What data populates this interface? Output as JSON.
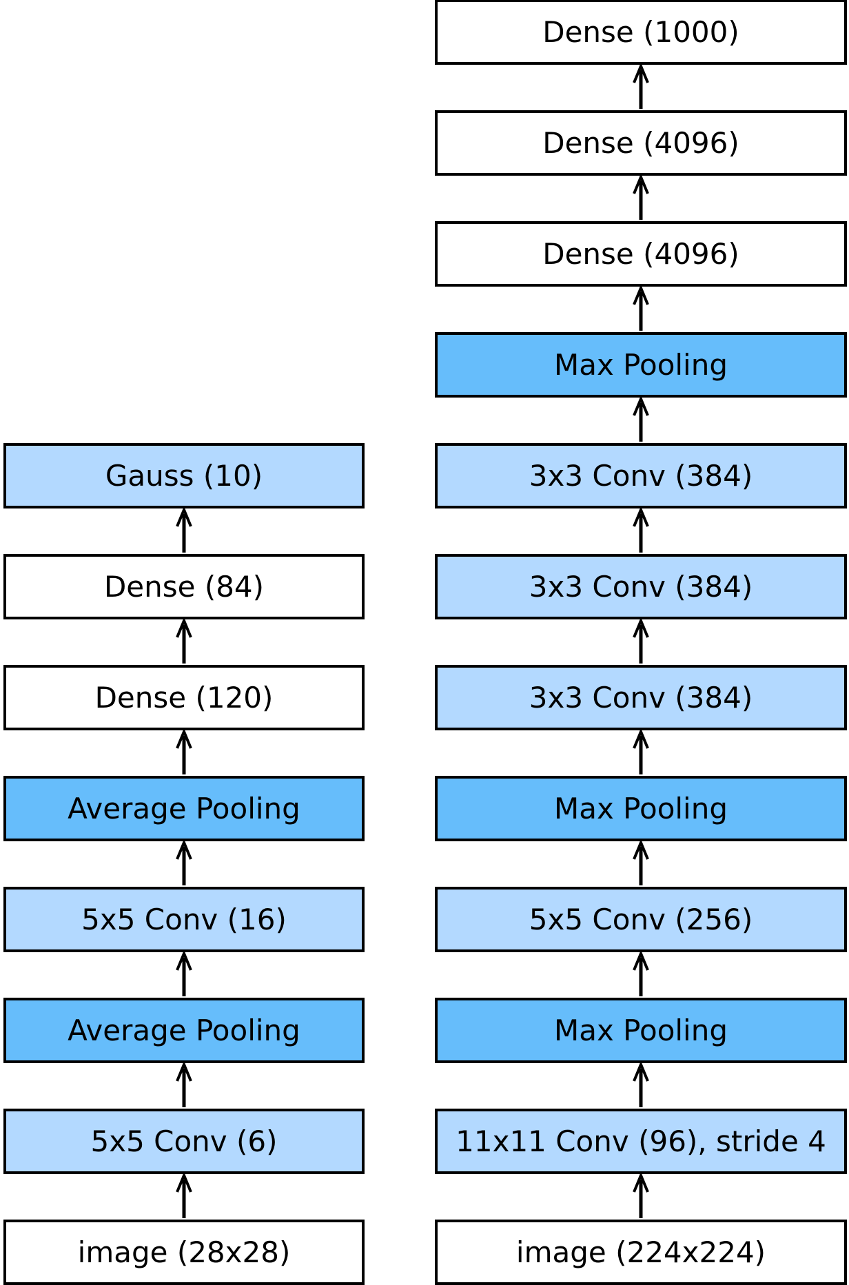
{
  "colors": {
    "plain": "#ffffff",
    "conv": "#b3d9ff",
    "pool": "#66bdfb",
    "stroke": "#000000"
  },
  "lenet": {
    "layers": [
      {
        "label": "image (28x28)",
        "kind": "plain"
      },
      {
        "label": "5x5 Conv (6)",
        "kind": "conv"
      },
      {
        "label": "Average Pooling",
        "kind": "pool"
      },
      {
        "label": "5x5 Conv (16)",
        "kind": "conv"
      },
      {
        "label": "Average Pooling",
        "kind": "pool"
      },
      {
        "label": "Dense (120)",
        "kind": "plain"
      },
      {
        "label": "Dense (84)",
        "kind": "plain"
      },
      {
        "label": "Gauss (10)",
        "kind": "conv"
      }
    ]
  },
  "alexnet": {
    "layers": [
      {
        "label": "image (224x224)",
        "kind": "plain"
      },
      {
        "label": "11x11 Conv (96), stride 4",
        "kind": "conv"
      },
      {
        "label": "Max Pooling",
        "kind": "pool"
      },
      {
        "label": "5x5 Conv (256)",
        "kind": "conv"
      },
      {
        "label": "Max Pooling",
        "kind": "pool"
      },
      {
        "label": "3x3 Conv (384)",
        "kind": "conv"
      },
      {
        "label": "3x3 Conv (384)",
        "kind": "conv"
      },
      {
        "label": "3x3 Conv (384)",
        "kind": "conv"
      },
      {
        "label": "Max Pooling",
        "kind": "pool"
      },
      {
        "label": "Dense (4096)",
        "kind": "plain"
      },
      {
        "label": "Dense (4096)",
        "kind": "plain"
      },
      {
        "label": "Dense (1000)",
        "kind": "plain"
      }
    ]
  }
}
